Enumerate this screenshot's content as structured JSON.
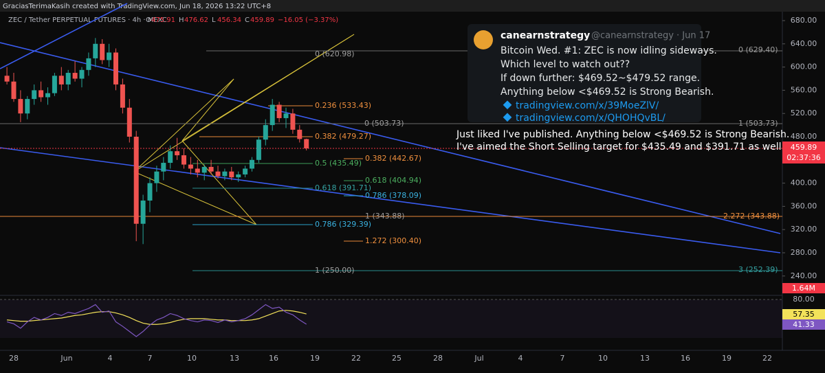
{
  "header": {
    "credit": "GraciasTerimaKasih created with TradingView.com, Jun 18, 2026 13:22 UTC+8"
  },
  "symbol": {
    "name": "ZEC / Tether PERPETUAL FUTURES · 4h · MEXC",
    "ohlc_labels": [
      "O",
      "H",
      "L",
      "C"
    ],
    "change": "−16.05 (−3.37%)"
  },
  "price_axis": {
    "ticks": [
      {
        "value": 680,
        "label": "680.00"
      },
      {
        "value": 640,
        "label": "640.00"
      },
      {
        "value": 600,
        "label": "600.00"
      },
      {
        "value": 560,
        "label": "560.00"
      },
      {
        "value": 520,
        "label": "520.00"
      },
      {
        "value": 480,
        "label": "480.00"
      },
      {
        "value": 400,
        "label": "400.00"
      },
      {
        "value": 360,
        "label": "360.00"
      },
      {
        "value": 320,
        "label": "320.00"
      },
      {
        "value": 280,
        "label": "280.00"
      },
      {
        "value": 240,
        "label": "240.00"
      }
    ],
    "timer": "02:37:36",
    "volume_label": "1.64M"
  },
  "time_axis": {
    "labels": [
      "28",
      "Jun",
      "4",
      "7",
      "10",
      "13",
      "16",
      "19",
      "22",
      "25",
      "28",
      "Jul",
      "4",
      "7",
      "10",
      "13",
      "16",
      "19",
      "22"
    ]
  },
  "candles": [
    [
      585,
      600,
      570,
      575
    ],
    [
      575,
      590,
      540,
      545
    ],
    [
      545,
      560,
      505,
      520
    ],
    [
      520,
      550,
      510,
      545
    ],
    [
      545,
      570,
      535,
      560
    ],
    [
      560,
      575,
      540,
      548
    ],
    [
      548,
      565,
      535,
      555
    ],
    [
      555,
      590,
      550,
      585
    ],
    [
      585,
      600,
      560,
      570
    ],
    [
      570,
      595,
      560,
      590
    ],
    [
      590,
      610,
      575,
      580
    ],
    [
      580,
      600,
      565,
      595
    ],
    [
      595,
      625,
      585,
      615
    ],
    [
      615,
      650,
      600,
      640
    ],
    [
      640,
      648,
      605,
      612
    ],
    [
      612,
      640,
      600,
      625
    ],
    [
      625,
      632,
      560,
      570
    ],
    [
      570,
      580,
      520,
      530
    ],
    [
      530,
      545,
      470,
      480
    ],
    [
      480,
      490,
      300,
      330
    ],
    [
      330,
      380,
      295,
      370
    ],
    [
      370,
      410,
      350,
      400
    ],
    [
      400,
      430,
      385,
      420
    ],
    [
      420,
      445,
      405,
      435
    ],
    [
      435,
      465,
      425,
      455
    ],
    [
      455,
      478,
      440,
      448
    ],
    [
      448,
      460,
      425,
      432
    ],
    [
      432,
      445,
      415,
      425
    ],
    [
      425,
      440,
      410,
      418
    ],
    [
      418,
      432,
      405,
      428
    ],
    [
      428,
      440,
      415,
      420
    ],
    [
      420,
      430,
      408,
      412
    ],
    [
      412,
      425,
      405,
      420
    ],
    [
      420,
      428,
      405,
      410
    ],
    [
      410,
      420,
      402,
      415
    ],
    [
      415,
      430,
      410,
      425
    ],
    [
      425,
      445,
      420,
      440
    ],
    [
      440,
      480,
      435,
      475
    ],
    [
      475,
      510,
      465,
      500
    ],
    [
      500,
      545,
      490,
      535
    ],
    [
      535,
      540,
      505,
      512
    ],
    [
      512,
      530,
      495,
      520
    ],
    [
      520,
      528,
      485,
      492
    ],
    [
      492,
      500,
      470,
      476
    ],
    [
      475.91,
      476.62,
      456.34,
      459.89
    ]
  ],
  "rsi": {
    "level_label": "80.00",
    "values": [
      45,
      42,
      35,
      45,
      52,
      48,
      52,
      58,
      55,
      60,
      58,
      62,
      66,
      72,
      60,
      62,
      45,
      38,
      30,
      22,
      30,
      40,
      48,
      52,
      58,
      55,
      50,
      47,
      45,
      48,
      47,
      44,
      48,
      45,
      47,
      50,
      56,
      64,
      72,
      66,
      68,
      60,
      56,
      48,
      41.33
    ],
    "ma": [
      48,
      47,
      46,
      46,
      47,
      48,
      49,
      50,
      51,
      53,
      55,
      56,
      58,
      60,
      61,
      61,
      59,
      56,
      52,
      47,
      43,
      41,
      41,
      42,
      44,
      47,
      49,
      50,
      50,
      50,
      49,
      48,
      48,
      47,
      47,
      47,
      48,
      50,
      54,
      58,
      62,
      63,
      62,
      60,
      57.35
    ]
  },
  "fib_a": [
    "0 (620.98)",
    "0.236 (533.43)",
    "0.382 (479.27)",
    "0.5 (435.49)",
    "0.618 (391.71)",
    "0.786 (329.39)",
    "1 (250.00)"
  ],
  "fib_b": [
    "0 (503.73)",
    "0.382 (442.67)",
    "0.618 (404.94)",
    "0.786 (378.09)",
    "1 (343.88)",
    "1.272 (300.40)"
  ],
  "fib_c": [
    "0 (629.40)",
    "1 (503.73)",
    "2.272 (343.88)",
    "3 (252.39)"
  ],
  "tweet": {
    "name": "canearnstrategy",
    "handle": "@canearnstrategy · Jun 17",
    "lines": [
      "Bitcoin Wed. #1: ZEC is now idling sideways.",
      "Which level to watch out??",
      "If down further: $469.52~$479.52 range.",
      "Anything below <$469.52 is Strong Bearish."
    ],
    "links": [
      "tradingview.com/x/39MoeZlV/",
      "tradingview.com/x/QHOHQvBL/"
    ]
  },
  "annotation": {
    "lines": [
      "Just liked I've published. Anything below <$469.52 is Strong Bearish.",
      "I've aimed the Short Selling target for $435.49 and $391.71 as well."
    ]
  }
}
